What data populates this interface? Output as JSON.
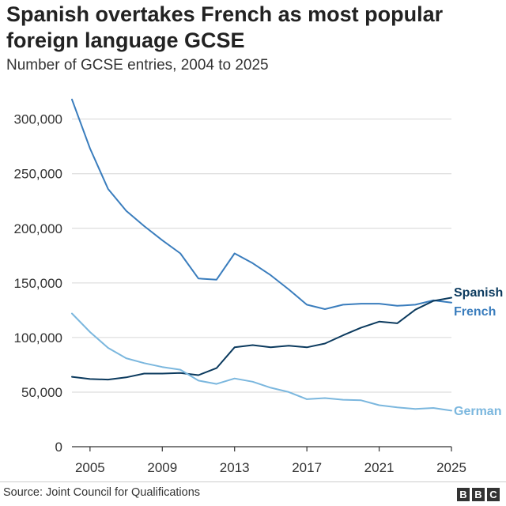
{
  "header": {
    "title": "Spanish overtakes French as most popular foreign language GCSE",
    "subtitle": "Number of GCSE entries, 2004 to 2025"
  },
  "footer": {
    "source": "Source: Joint Council for Qualifications",
    "logo_letters": [
      "B",
      "B",
      "C"
    ]
  },
  "chart_data": {
    "type": "line",
    "title": "Spanish overtakes French as most popular foreign language GCSE",
    "subtitle": "Number of GCSE entries, 2004 to 2025",
    "xlabel": "",
    "ylabel": "",
    "xlim": [
      2004,
      2025
    ],
    "ylim": [
      0,
      320000
    ],
    "x_ticks": [
      2005,
      2009,
      2013,
      2017,
      2021,
      2025
    ],
    "y_ticks": [
      0,
      50000,
      100000,
      150000,
      200000,
      250000,
      300000
    ],
    "y_tick_labels": [
      "0",
      "50,000",
      "100,000",
      "150,000",
      "200,000",
      "250,000",
      "300,000"
    ],
    "grid": true,
    "x": [
      2004,
      2005,
      2006,
      2007,
      2008,
      2009,
      2010,
      2011,
      2012,
      2013,
      2014,
      2015,
      2016,
      2017,
      2018,
      2019,
      2020,
      2021,
      2022,
      2023,
      2024,
      2025
    ],
    "series": [
      {
        "name": "French",
        "color": "#3a7dbd",
        "values": [
          318000,
          273000,
          236000,
          216000,
          202000,
          189000,
          177000,
          154000,
          153000,
          177000,
          168000,
          157000,
          144000,
          130000,
          126000,
          130000,
          131000,
          131000,
          129000,
          130000,
          134000,
          132000
        ]
      },
      {
        "name": "Spanish",
        "color": "#0b3a5e",
        "values": [
          64000,
          62000,
          61500,
          63500,
          67000,
          67000,
          67500,
          65500,
          72000,
          91000,
          93000,
          91000,
          92500,
          91000,
          94500,
          102000,
          109000,
          114500,
          113000,
          125500,
          133500,
          136500
        ]
      },
      {
        "name": "German",
        "color": "#7bb7de",
        "values": [
          122000,
          105000,
          90500,
          81000,
          76500,
          73000,
          70500,
          60500,
          57500,
          62500,
          59500,
          54000,
          50000,
          43500,
          44500,
          43000,
          42500,
          38000,
          36000,
          34500,
          35500,
          33000
        ]
      }
    ]
  }
}
